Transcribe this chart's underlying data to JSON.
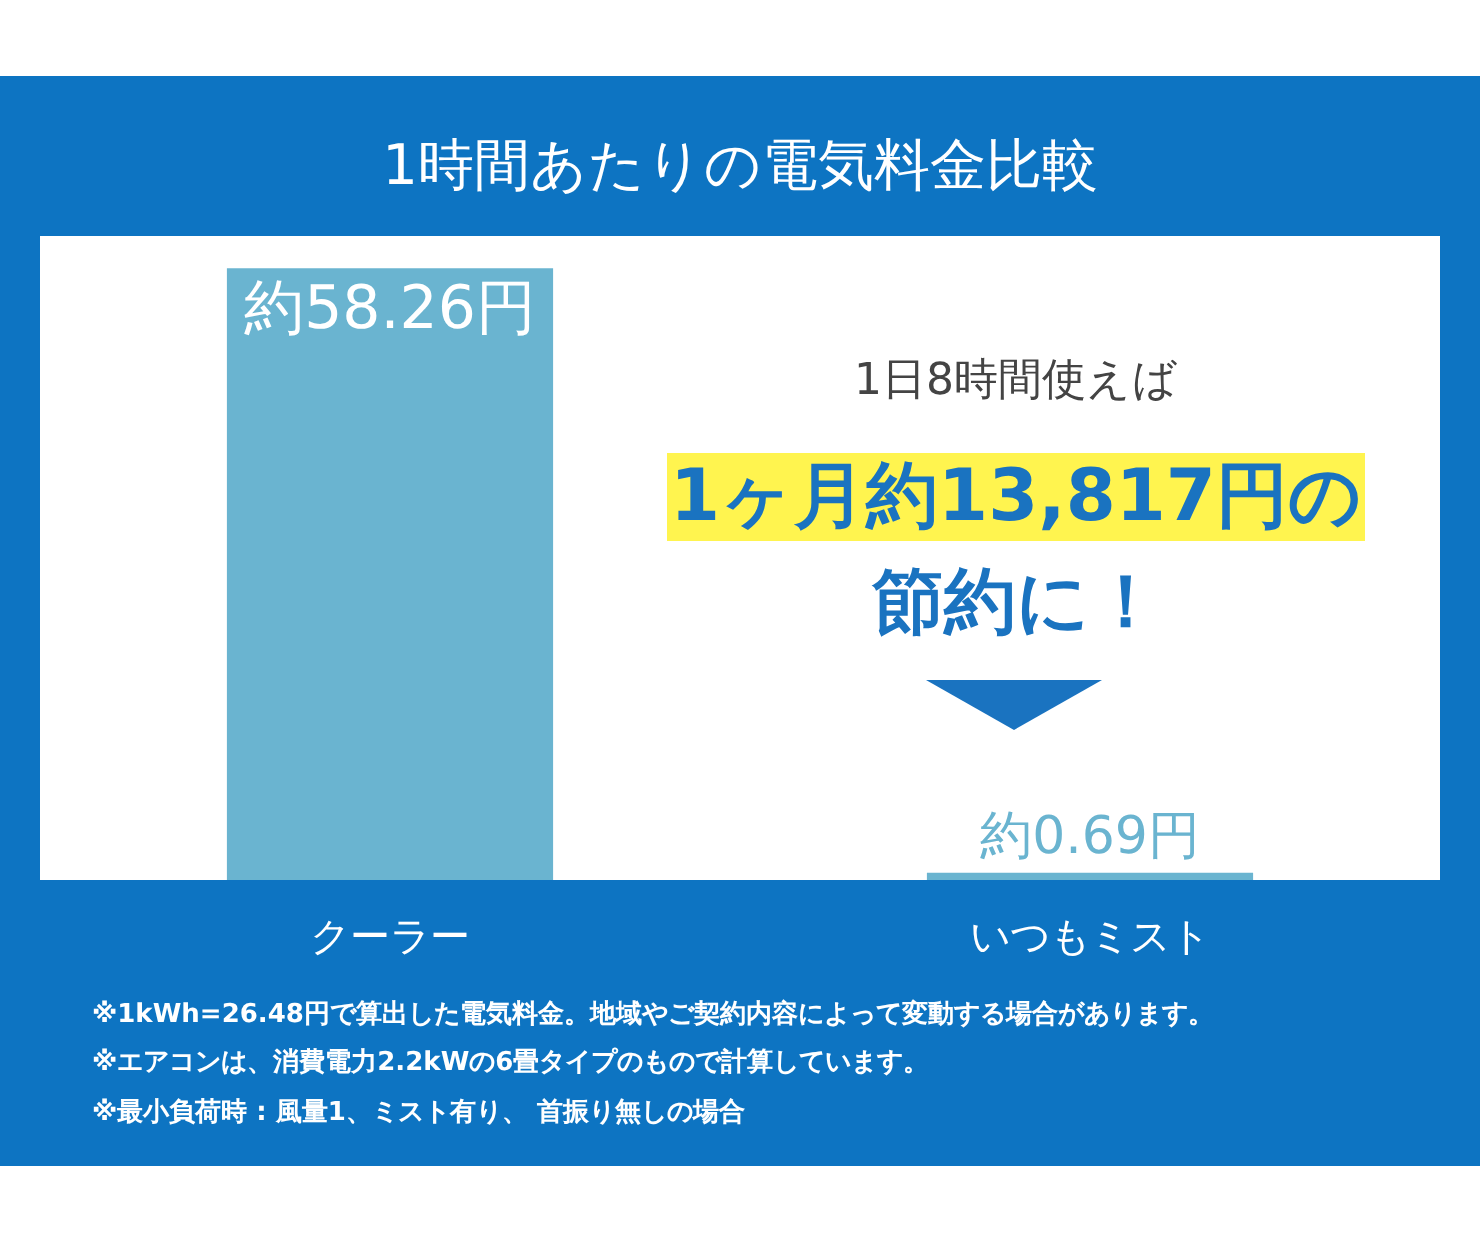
{
  "chart_data": {
    "type": "bar",
    "title": "1時間あたりの電気料金比較",
    "categories": [
      "クーラー",
      "いつもミスト"
    ],
    "values": [
      58.26,
      0.69
    ],
    "value_labels": [
      "約58.26円",
      "約0.69円"
    ],
    "color": "#6ab4d0",
    "annotations": [
      "1日8時間使えば",
      "1ヶ月約13,817円の",
      "節約に！",
      "※1kWh=26.48円で算出した電気料金。地域やご契約内容によって変動する場合があります。",
      "※エアコンは、消費電力2.2kWの6畳タイプのもので計算しています。",
      "※最小負荷時 : 風量1、ミスト有り、 首振り無しの場合"
    ],
    "grid": false,
    "legend": false
  }
}
